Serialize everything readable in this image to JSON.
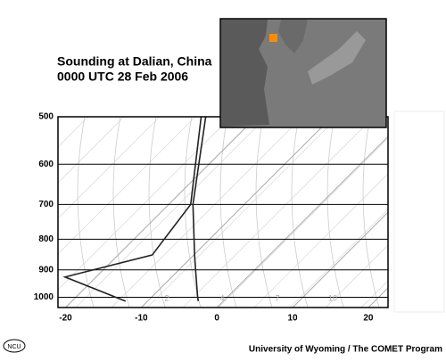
{
  "chart_data": {
    "type": "skewt",
    "title": "Sounding at Dalian, China",
    "subtitle": "0000 UTC 28 Feb 2006",
    "credit": "University of Wyoming / The COMET Program",
    "logo": "NCU",
    "xlim": [
      -21,
      22.6
    ],
    "xticks": [
      -20,
      -10,
      0,
      10,
      20
    ],
    "ylim": [
      1040,
      500
    ],
    "yticks": [
      500,
      600,
      700,
      800,
      900,
      1000
    ],
    "log_y": true,
    "mixing_ratio_labels": [
      "2",
      "4",
      "7",
      "10"
    ],
    "series": [
      {
        "color": "#222222",
        "pressure": [
          1015,
          1000,
          900,
          850,
          700,
          500
        ],
        "values": [
          -3.3,
          -3.9,
          -7.8,
          -9.9,
          -16.8,
          -26.7
        ]
      },
      {
        "color": "#222222",
        "pressure": [
          1015,
          925,
          850,
          700,
          500
        ],
        "values": [
          -12.9,
          -24.1,
          -15.5,
          -17.1,
          -27.3
        ]
      }
    ]
  }
}
